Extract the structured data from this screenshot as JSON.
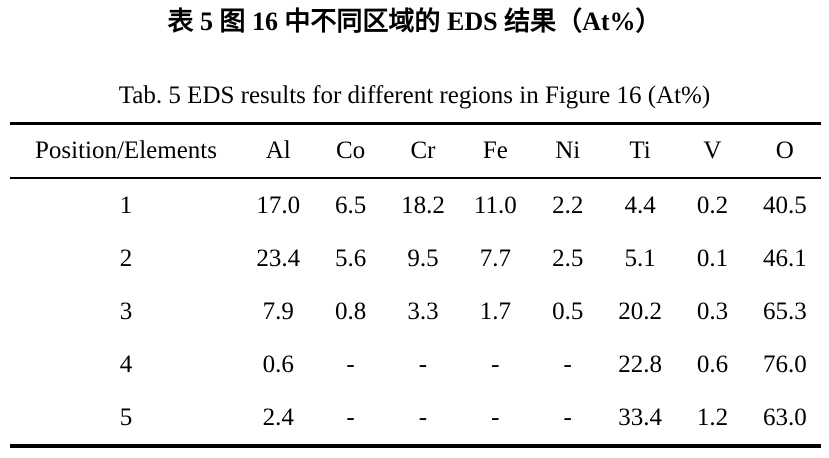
{
  "page": {
    "title_cn": "表 5 图 16 中不同区域的 EDS 结果（At%）",
    "title_en": "Tab. 5 EDS results for different regions in Figure 16 (At%)"
  },
  "colors": {
    "background": "#ffffff",
    "text": "#000000",
    "rule": "#000000"
  },
  "table": {
    "columns": [
      "Position/Elements",
      "Al",
      "Co",
      "Cr",
      "Fe",
      "Ni",
      "Ti",
      "V",
      "O"
    ],
    "rows": [
      [
        "1",
        "17.0",
        "6.5",
        "18.2",
        "11.0",
        "2.2",
        "4.4",
        "0.2",
        "40.5"
      ],
      [
        "2",
        "23.4",
        "5.6",
        "9.5",
        "7.7",
        "2.5",
        "5.1",
        "0.1",
        "46.1"
      ],
      [
        "3",
        "7.9",
        "0.8",
        "3.3",
        "1.7",
        "0.5",
        "20.2",
        "0.3",
        "65.3"
      ],
      [
        "4",
        "0.6",
        "-",
        "-",
        "-",
        "-",
        "22.8",
        "0.6",
        "76.0"
      ],
      [
        "5",
        "2.4",
        "-",
        "-",
        "-",
        "-",
        "33.4",
        "1.2",
        "63.0"
      ]
    ]
  }
}
